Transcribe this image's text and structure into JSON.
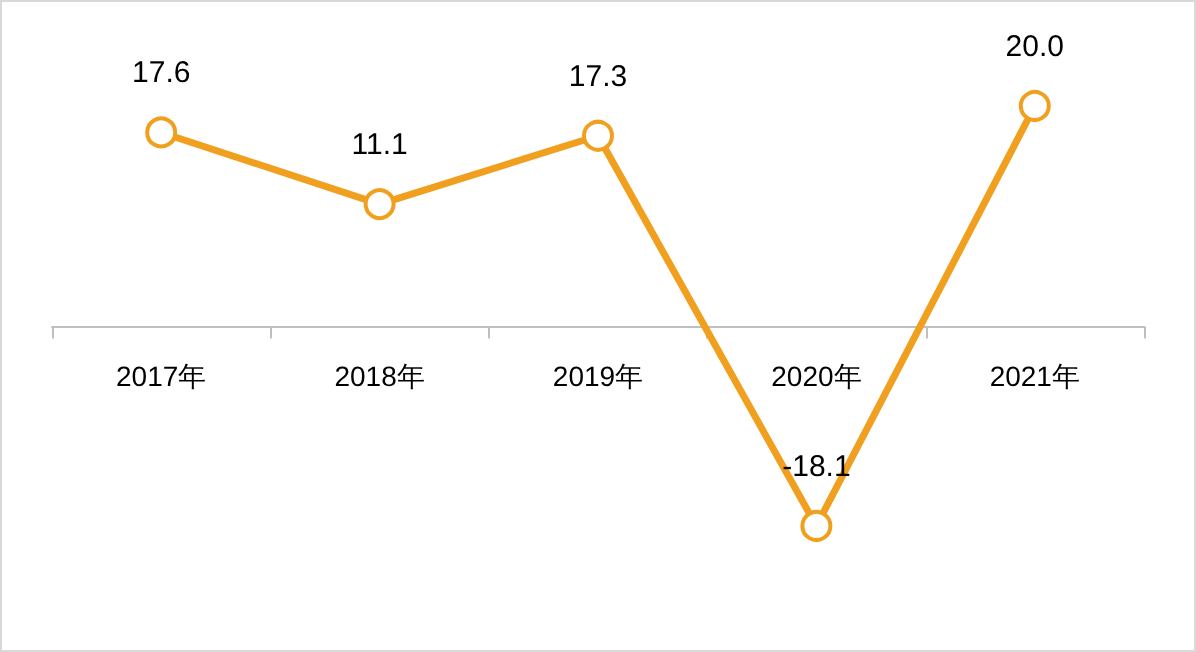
{
  "chart_data": {
    "type": "line",
    "categories": [
      "2017年",
      "2018年",
      "2019年",
      "2020年",
      "2021年"
    ],
    "series": [
      {
        "color": "#f0a01e",
        "values": [
          17.6,
          11.1,
          17.3,
          -18.1,
          20.0
        ],
        "value_labels": [
          "17.6",
          "11.1",
          "17.3",
          "-18.1",
          "20.0"
        ]
      }
    ],
    "marker": "circle",
    "line_style": "solid",
    "grid": false
  }
}
